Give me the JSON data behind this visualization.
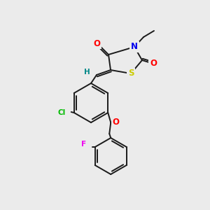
{
  "bg_color": "#ebebeb",
  "bond_color": "#1a1a1a",
  "atom_colors": {
    "O": "#ff0000",
    "N": "#0000ee",
    "S": "#cccc00",
    "Cl": "#00bb00",
    "F": "#ee00ee",
    "H": "#008888",
    "C": "#1a1a1a"
  },
  "figsize": [
    3.0,
    3.0
  ],
  "dpi": 100
}
